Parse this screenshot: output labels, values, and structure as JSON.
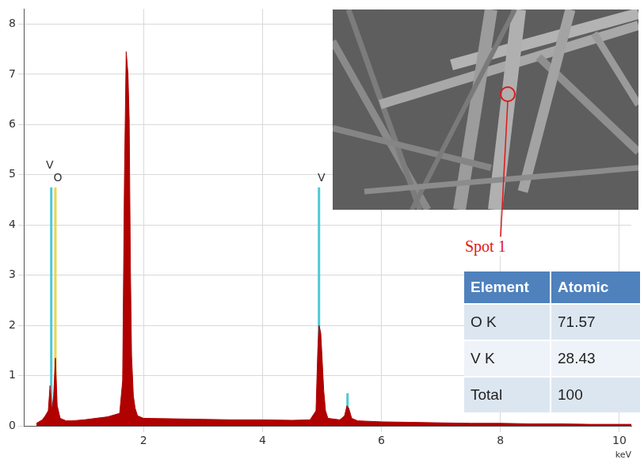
{
  "chart_data": {
    "type": "line",
    "x_label": "keV",
    "x": [
      0.2,
      0.3,
      0.35,
      0.4,
      0.43,
      0.46,
      0.49,
      0.52,
      0.55,
      0.6,
      0.7,
      0.8,
      1.0,
      1.2,
      1.4,
      1.6,
      1.65,
      1.68,
      1.71,
      1.74,
      1.76,
      1.78,
      1.8,
      1.83,
      1.86,
      1.9,
      2.0,
      2.5,
      3.0,
      3.5,
      4.0,
      4.5,
      4.8,
      4.9,
      4.93,
      4.95,
      4.98,
      5.0,
      5.03,
      5.06,
      5.1,
      5.3,
      5.38,
      5.42,
      5.45,
      5.5,
      5.6,
      6.0,
      6.5,
      7.0,
      7.5,
      8.0,
      8.5,
      9.0,
      9.5,
      10.0,
      10.2
    ],
    "values": [
      0.05,
      0.12,
      0.2,
      0.3,
      0.8,
      0.3,
      0.6,
      1.35,
      0.4,
      0.15,
      0.1,
      0.1,
      0.12,
      0.15,
      0.18,
      0.25,
      0.9,
      4.9,
      7.45,
      7.0,
      6.1,
      3.2,
      1.4,
      0.6,
      0.35,
      0.2,
      0.15,
      0.14,
      0.13,
      0.12,
      0.12,
      0.11,
      0.12,
      0.3,
      1.5,
      2.0,
      1.85,
      1.4,
      0.7,
      0.3,
      0.15,
      0.12,
      0.2,
      0.4,
      0.35,
      0.15,
      0.1,
      0.08,
      0.07,
      0.06,
      0.05,
      0.05,
      0.04,
      0.04,
      0.03,
      0.03,
      0.03
    ],
    "color": "#b00000",
    "markers": [
      {
        "label": "V",
        "x": 0.45,
        "value": 4.75,
        "color": "#4dc9d6"
      },
      {
        "label": "O",
        "x": 0.52,
        "value": 4.75,
        "color": "#e6d64e"
      },
      {
        "label": "V",
        "x": 4.95,
        "value": 4.75,
        "color": "#4dc9d6"
      },
      {
        "x": 5.43,
        "value": 0.65,
        "color": "#4dc9d6"
      }
    ],
    "xlim": [
      0,
      10.2
    ],
    "xticks": [
      2,
      4,
      6,
      8,
      10
    ],
    "ylim": [
      0,
      8.3
    ],
    "yticks": [
      0,
      1,
      2,
      3,
      4,
      5,
      6,
      7,
      8
    ],
    "grid": true
  },
  "inset": {
    "spot_label": "Spot 1"
  },
  "table": {
    "header": [
      "Element",
      "Atomic"
    ],
    "rows": [
      [
        "O K",
        "71.57"
      ],
      [
        "V K",
        "28.43"
      ],
      [
        "Total",
        "100"
      ]
    ]
  }
}
